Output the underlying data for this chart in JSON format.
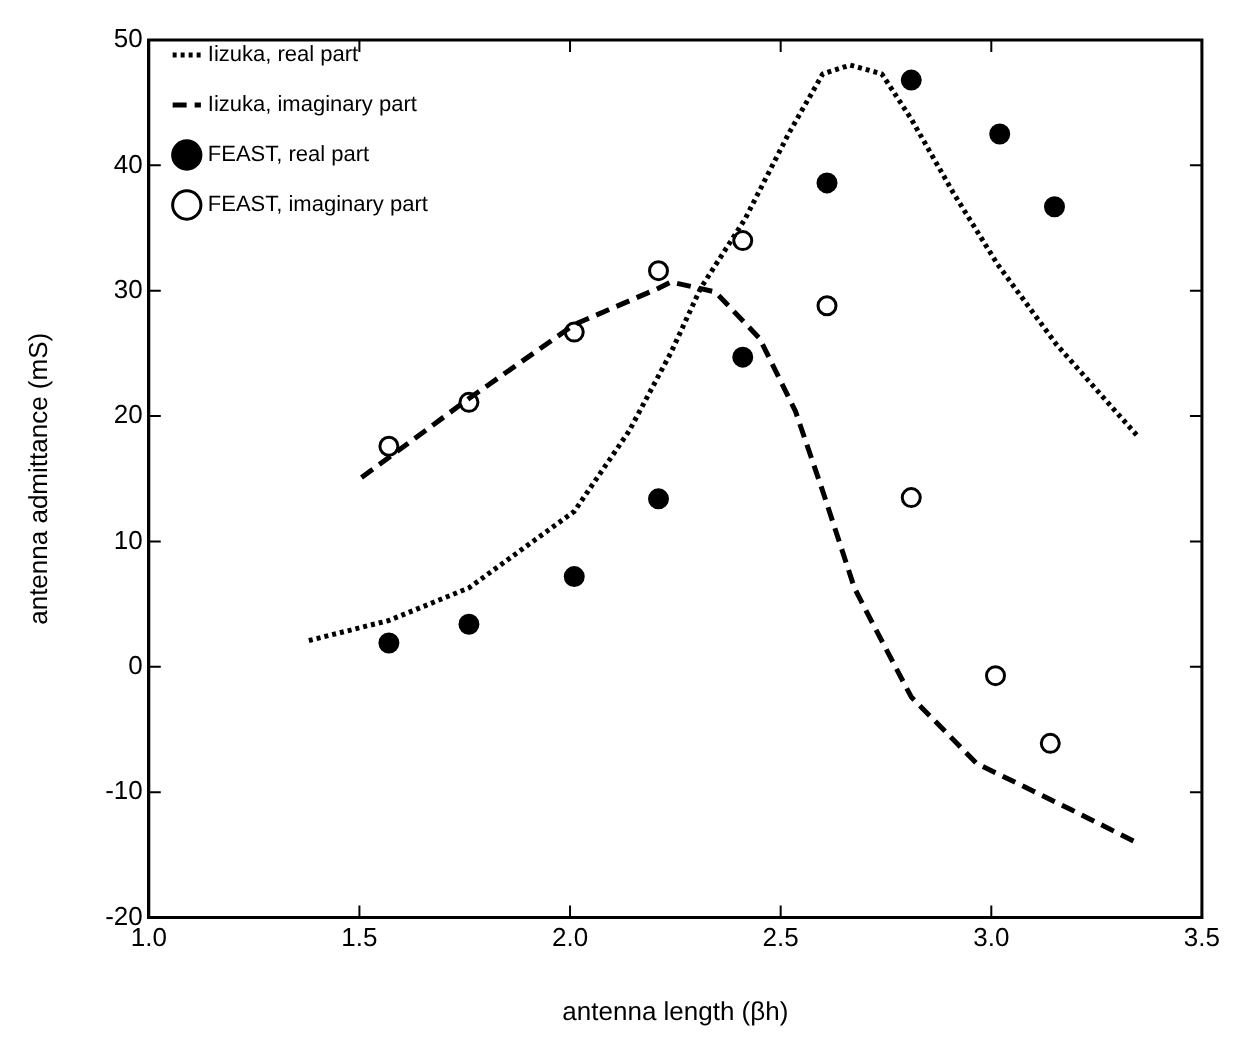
{
  "chart_data": {
    "type": "line",
    "xlabel": "antenna length (βh)",
    "ylabel": "antenna admittance (mS)",
    "xlim": [
      1.0,
      3.5
    ],
    "xticks": [
      {
        "value": 1.0,
        "label": "1.0"
      },
      {
        "value": 1.5,
        "label": "1.5"
      },
      {
        "value": 2.0,
        "label": "2.0"
      },
      {
        "value": 2.5,
        "label": "2.5"
      },
      {
        "value": 3.0,
        "label": "3.0"
      },
      {
        "value": 3.5,
        "label": "3.5"
      }
    ],
    "ylim": [
      -20,
      50
    ],
    "yticks": [
      -20,
      -10,
      0,
      10,
      20,
      30,
      40,
      50
    ],
    "grid": false,
    "legend": "top left",
    "marker": "none",
    "series": [
      {
        "name": "Iizuka, real part",
        "line_style": "dotted",
        "color": "#000000",
        "x": [
          1.38,
          1.57,
          1.76,
          2.01,
          2.14,
          2.24,
          2.31,
          2.415,
          2.52,
          2.6,
          2.665,
          2.74,
          2.81,
          2.91,
          3.015,
          3.155,
          3.35
        ],
        "values": [
          2.1,
          3.7,
          6.3,
          12.4,
          18.8,
          25.1,
          30.2,
          35.7,
          42.6,
          47.3,
          48.0,
          47.3,
          43.7,
          37.8,
          32.1,
          25.7,
          18.3
        ]
      },
      {
        "name": "Iizuka, imaginary part",
        "line_style": "dashed",
        "color": "#000000",
        "x": [
          1.505,
          1.76,
          2.01,
          2.21,
          2.24,
          2.345,
          2.45,
          2.535,
          2.6,
          2.675,
          2.71,
          2.81,
          2.965,
          3.19,
          3.35
        ],
        "values": [
          15.1,
          21.4,
          27.3,
          30.2,
          30.7,
          29.9,
          26.2,
          20.4,
          14.0,
          6.3,
          4.0,
          -2.4,
          -7.7,
          -11.4,
          -14.1
        ]
      },
      {
        "name": "FEAST, real part",
        "type": "scatter",
        "marker": "circle",
        "color": "#000000",
        "x": [
          1.57,
          1.76,
          2.01,
          2.21,
          2.41,
          2.61,
          2.81,
          3.02,
          3.15
        ],
        "values": [
          1.9,
          3.4,
          7.2,
          13.4,
          24.7,
          38.6,
          46.8,
          42.5,
          36.7
        ]
      },
      {
        "name": "FEAST, imaginary part",
        "type": "scatter",
        "marker": "circle",
        "color": "#ffffff",
        "x": [
          1.57,
          1.76,
          2.01,
          2.21,
          2.41,
          2.61,
          2.81,
          3.01,
          3.14
        ],
        "values": [
          17.6,
          21.1,
          26.7,
          31.6,
          34.0,
          28.8,
          13.5,
          -0.7,
          -6.1
        ]
      }
    ]
  }
}
